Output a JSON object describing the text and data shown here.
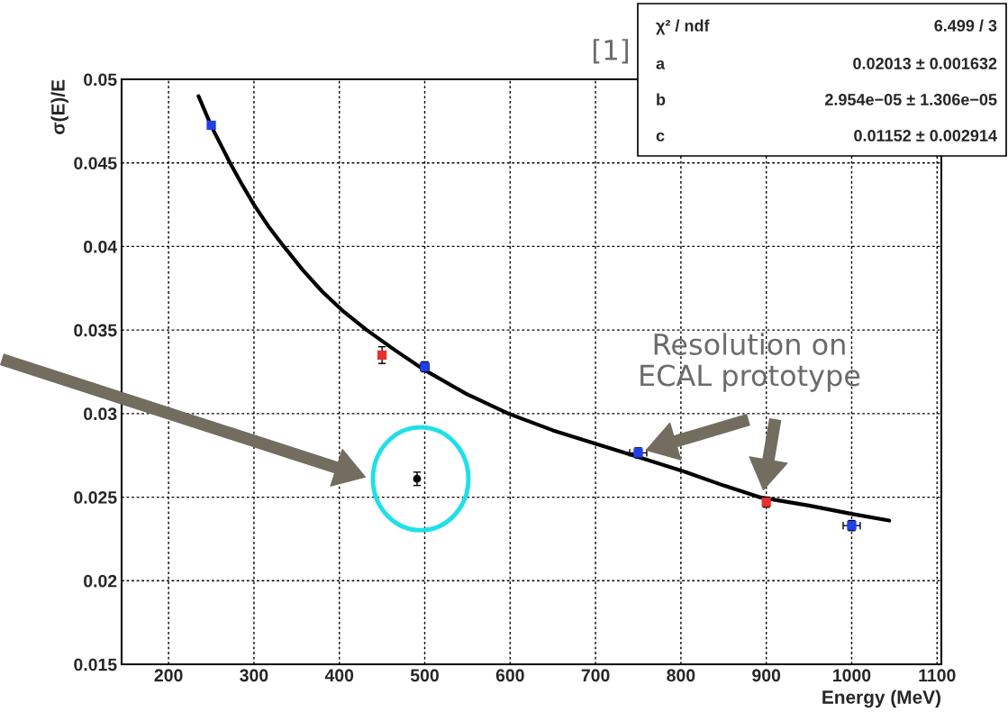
{
  "chart_data": {
    "type": "scatter",
    "xlabel": "Energy (MeV)",
    "ylabel": "σ(E)/E",
    "xlim": [
      145,
      1105
    ],
    "ylim": [
      0.015,
      0.05
    ],
    "xticks": [
      200,
      300,
      400,
      500,
      600,
      700,
      800,
      900,
      1000,
      1100
    ],
    "yticks": [
      0.015,
      0.02,
      0.025,
      0.03,
      0.035,
      0.04,
      0.045,
      0.05
    ],
    "grid": true,
    "series": [
      {
        "type": "line",
        "color": "#000000",
        "line_style": "solid",
        "marker": "none",
        "x": [
          235,
          250,
          262,
          272,
          285,
          300,
          317,
          335,
          357,
          380,
          405,
          432,
          465,
          500,
          548,
          598,
          650,
          700,
          750,
          800,
          850,
          892,
          950,
          1000,
          1044
        ],
        "values": [
          0.049,
          0.0472,
          0.046,
          0.045,
          0.0438,
          0.0425,
          0.0412,
          0.04,
          0.0386,
          0.0373,
          0.0361,
          0.035,
          0.0338,
          0.0326,
          0.0312,
          0.03,
          0.029,
          0.0282,
          0.0274,
          0.0266,
          0.0257,
          0.025,
          0.0245,
          0.024,
          0.0236
        ]
      },
      {
        "color": "#1f3fe8",
        "marker": "square",
        "x": [
          250,
          500,
          750,
          1000
        ],
        "values": [
          0.04725,
          0.0328,
          0.02765,
          0.0233
        ],
        "errors": [
          null,
          0.0003,
          0.0003,
          0.0003
        ],
        "xerrors": [
          null,
          5,
          10,
          10
        ]
      },
      {
        "color": "#e83030",
        "marker": "square",
        "x": [
          450,
          900
        ],
        "values": [
          0.0335,
          0.0247
        ],
        "errors": [
          0.0005,
          0.0003
        ],
        "xerrors": [
          null,
          null
        ]
      },
      {
        "color": "#000000",
        "marker": "circle",
        "x": [
          491
        ],
        "values": [
          0.0261
        ],
        "errors": [
          0.0004
        ],
        "xerrors": [
          null
        ]
      }
    ],
    "annotations": [
      "[1]",
      "χ² / ndf",
      "6.499 / 3",
      "a",
      "0.02013 ± 0.001632",
      "b",
      "2.954e−05 ± 1.306e−05",
      "c",
      "0.01152 ± 0.002914",
      "Resolution on\nECAL prototype"
    ]
  }
}
